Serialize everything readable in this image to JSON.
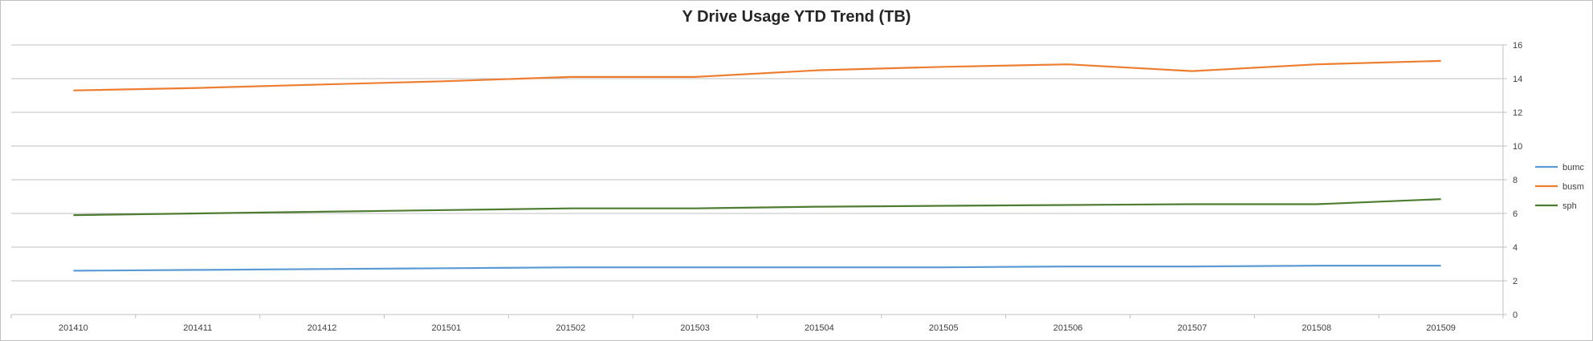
{
  "chart_data": {
    "type": "line",
    "title": "Y Drive Usage YTD Trend (TB)",
    "x": [
      "201410",
      "201411",
      "201412",
      "201501",
      "201502",
      "201503",
      "201504",
      "201505",
      "201506",
      "201507",
      "201508",
      "201509"
    ],
    "series": [
      {
        "name": "bumc",
        "color": "#5b9bd5",
        "values": [
          2.6,
          2.65,
          2.7,
          2.75,
          2.8,
          2.8,
          2.8,
          2.8,
          2.85,
          2.85,
          2.9,
          2.9
        ]
      },
      {
        "name": "busm",
        "color": "#ed7d31",
        "values": [
          13.3,
          13.45,
          13.65,
          13.85,
          14.1,
          14.1,
          14.5,
          14.7,
          14.85,
          14.45,
          14.85,
          15.05
        ]
      },
      {
        "name": "sph",
        "color": "#4e7d32",
        "values": [
          5.9,
          6.0,
          6.1,
          6.2,
          6.3,
          6.3,
          6.4,
          6.45,
          6.5,
          6.55,
          6.55,
          6.85
        ]
      }
    ],
    "ylim": [
      0,
      16
    ],
    "yticks": [
      0,
      2,
      4,
      6,
      8,
      10,
      12,
      14,
      16
    ],
    "grid": true,
    "legend": "right"
  }
}
